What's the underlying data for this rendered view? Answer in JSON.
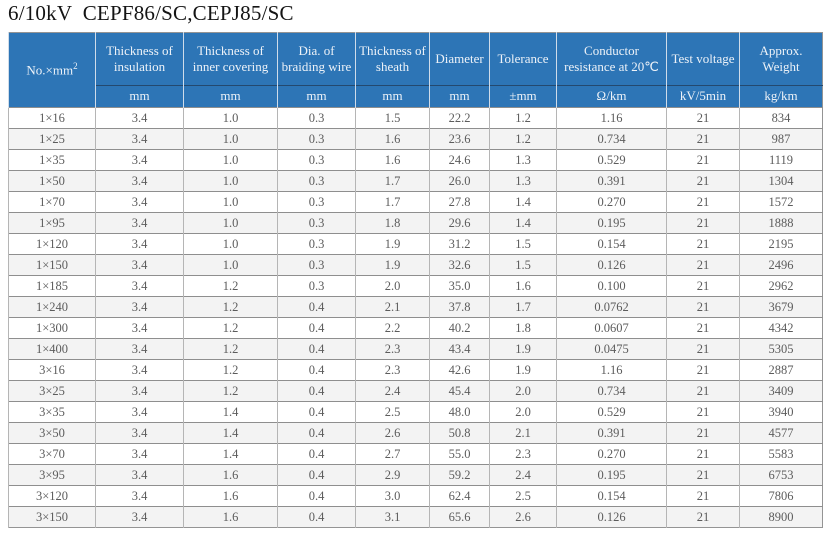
{
  "page": {
    "title": "6/10kV  CEPF86/SC,CEPJ85/SC"
  },
  "colors": {
    "header_bg": "#2d75b6",
    "header_text": "#edf2f8",
    "row_alt_bg": "#f3f3f3",
    "body_text": "#5c5c5c",
    "grid_horizontal": "#8e8e8e",
    "grid_vertical": "#b5b5b5"
  },
  "table": {
    "first_column": {
      "label_base": "No.×mm",
      "label_sup": "2"
    },
    "columns": [
      {
        "label": "Thickness of insulation",
        "unit": "mm"
      },
      {
        "label": "Thickness of inner covering",
        "unit": "mm"
      },
      {
        "label": "Dia. of braiding wire",
        "unit": "mm"
      },
      {
        "label": "Thickness of sheath",
        "unit": "mm"
      },
      {
        "label": "Diameter",
        "unit": "mm"
      },
      {
        "label": "Tolerance",
        "unit": "±mm"
      },
      {
        "label": "Conductor resistance at 20℃",
        "unit": "Ω/km"
      },
      {
        "label": "Test voltage",
        "unit": "kV/5min"
      },
      {
        "label": "Approx. Weight",
        "unit": "kg/km"
      }
    ],
    "rows": [
      [
        "1×16",
        "3.4",
        "1.0",
        "0.3",
        "1.5",
        "22.2",
        "1.2",
        "1.16",
        "21",
        "834"
      ],
      [
        "1×25",
        "3.4",
        "1.0",
        "0.3",
        "1.6",
        "23.6",
        "1.2",
        "0.734",
        "21",
        "987"
      ],
      [
        "1×35",
        "3.4",
        "1.0",
        "0.3",
        "1.6",
        "24.6",
        "1.3",
        "0.529",
        "21",
        "1119"
      ],
      [
        "1×50",
        "3.4",
        "1.0",
        "0.3",
        "1.7",
        "26.0",
        "1.3",
        "0.391",
        "21",
        "1304"
      ],
      [
        "1×70",
        "3.4",
        "1.0",
        "0.3",
        "1.7",
        "27.8",
        "1.4",
        "0.270",
        "21",
        "1572"
      ],
      [
        "1×95",
        "3.4",
        "1.0",
        "0.3",
        "1.8",
        "29.6",
        "1.4",
        "0.195",
        "21",
        "1888"
      ],
      [
        "1×120",
        "3.4",
        "1.0",
        "0.3",
        "1.9",
        "31.2",
        "1.5",
        "0.154",
        "21",
        "2195"
      ],
      [
        "1×150",
        "3.4",
        "1.0",
        "0.3",
        "1.9",
        "32.6",
        "1.5",
        "0.126",
        "21",
        "2496"
      ],
      [
        "1×185",
        "3.4",
        "1.2",
        "0.3",
        "2.0",
        "35.0",
        "1.6",
        "0.100",
        "21",
        "2962"
      ],
      [
        "1×240",
        "3.4",
        "1.2",
        "0.4",
        "2.1",
        "37.8",
        "1.7",
        "0.0762",
        "21",
        "3679"
      ],
      [
        "1×300",
        "3.4",
        "1.2",
        "0.4",
        "2.2",
        "40.2",
        "1.8",
        "0.0607",
        "21",
        "4342"
      ],
      [
        "1×400",
        "3.4",
        "1.2",
        "0.4",
        "2.3",
        "43.4",
        "1.9",
        "0.0475",
        "21",
        "5305"
      ],
      [
        "3×16",
        "3.4",
        "1.2",
        "0.4",
        "2.3",
        "42.6",
        "1.9",
        "1.16",
        "21",
        "2887"
      ],
      [
        "3×25",
        "3.4",
        "1.2",
        "0.4",
        "2.4",
        "45.4",
        "2.0",
        "0.734",
        "21",
        "3409"
      ],
      [
        "3×35",
        "3.4",
        "1.4",
        "0.4",
        "2.5",
        "48.0",
        "2.0",
        "0.529",
        "21",
        "3940"
      ],
      [
        "3×50",
        "3.4",
        "1.4",
        "0.4",
        "2.6",
        "50.8",
        "2.1",
        "0.391",
        "21",
        "4577"
      ],
      [
        "3×70",
        "3.4",
        "1.4",
        "0.4",
        "2.7",
        "55.0",
        "2.3",
        "0.270",
        "21",
        "5583"
      ],
      [
        "3×95",
        "3.4",
        "1.6",
        "0.4",
        "2.9",
        "59.2",
        "2.4",
        "0.195",
        "21",
        "6753"
      ],
      [
        "3×120",
        "3.4",
        "1.6",
        "0.4",
        "3.0",
        "62.4",
        "2.5",
        "0.154",
        "21",
        "7806"
      ],
      [
        "3×150",
        "3.4",
        "1.6",
        "0.4",
        "3.1",
        "65.6",
        "2.6",
        "0.126",
        "21",
        "8900"
      ]
    ]
  }
}
